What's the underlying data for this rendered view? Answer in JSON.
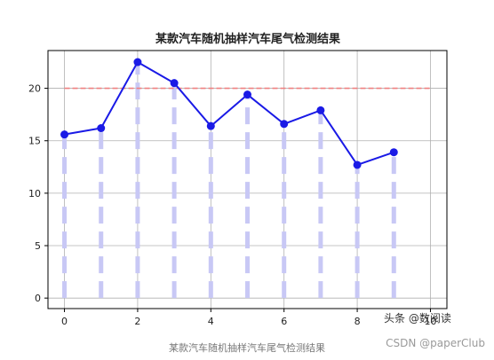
{
  "chart_data": {
    "type": "line",
    "title": "某款汽车随机抽样汽车尾气检测结果",
    "xlabel": "",
    "ylabel": "",
    "x": [
      0,
      1,
      2,
      3,
      4,
      5,
      6,
      7,
      8,
      9
    ],
    "series": [
      {
        "values": [
          15.6,
          16.2,
          22.5,
          20.5,
          16.4,
          19.4,
          16.6,
          17.9,
          12.7,
          13.9
        ]
      }
    ],
    "reference_line": {
      "y": 20,
      "x_range": [
        0,
        10
      ]
    },
    "xlim": [
      -0.45,
      10.45
    ],
    "ylim": [
      -1,
      23.6
    ],
    "xticks": [
      0,
      2,
      4,
      6,
      8,
      10
    ],
    "yticks": [
      0,
      5,
      10,
      15,
      20
    ],
    "grid": true,
    "colors": {
      "line": "#1a1ae6",
      "reference": "#f08080",
      "stems": "#c8c8f5",
      "grid": "#b0b0b0"
    }
  },
  "caption": "某款汽车随机抽样汽车尾气检测结果",
  "watermarks": {
    "csdn": "CSDN @paperClub",
    "toutiao": "头条 @数阅读"
  }
}
